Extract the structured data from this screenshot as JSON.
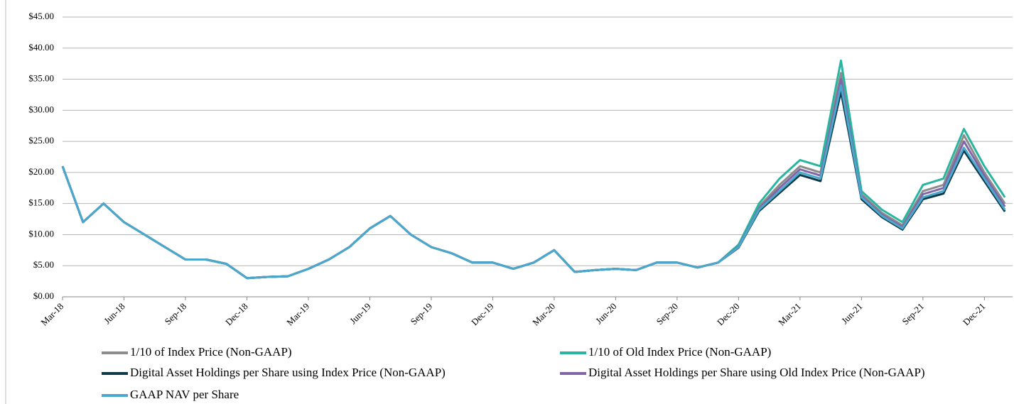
{
  "chart_data": {
    "type": "line",
    "categories": [
      "Mar-18",
      null,
      null,
      "Jun-18",
      null,
      null,
      "Sep-18",
      null,
      null,
      "Dec-18",
      null,
      null,
      "Mar-19",
      null,
      null,
      "Jun-19",
      null,
      null,
      "Sep-19",
      null,
      null,
      "Dec-19",
      null,
      null,
      "Mar-20",
      null,
      null,
      "Jun-20",
      null,
      null,
      "Sep-20",
      null,
      null,
      "Dec-20",
      null,
      null,
      "Mar-21",
      null,
      null,
      "Jun-21",
      null,
      null,
      "Sep-21",
      null,
      null,
      "Dec-21",
      null
    ],
    "series": [
      {
        "name": "1/10 of Index Price (Non-GAAP)",
        "color": "#8c8c8c",
        "values": [
          21,
          12,
          15,
          12,
          10,
          8,
          6,
          6,
          5.3,
          3,
          3.2,
          3.3,
          4.5,
          6,
          8,
          11,
          13,
          10,
          8,
          7,
          5.5,
          5.5,
          4.5,
          5.5,
          7.5,
          4,
          4.3,
          4.5,
          4.3,
          5.5,
          5.5,
          4.7,
          5.5,
          8.2,
          14.5,
          18,
          21,
          20,
          36,
          16.5,
          13.5,
          11.5,
          17,
          18,
          26,
          20,
          15
        ]
      },
      {
        "name": "1/10 of Old Index Price (Non-GAAP)",
        "color": "#2ab5a0",
        "values": [
          21,
          12,
          15,
          12,
          10,
          8,
          6,
          6,
          5.3,
          3,
          3.2,
          3.3,
          4.5,
          6,
          8,
          11,
          13,
          10,
          8,
          7,
          5.5,
          5.5,
          4.5,
          5.5,
          7.5,
          4,
          4.3,
          4.5,
          4.3,
          5.5,
          5.5,
          4.7,
          5.5,
          8.4,
          15,
          19,
          22,
          21,
          38,
          17,
          14,
          12,
          18,
          19,
          27,
          21,
          16
        ]
      },
      {
        "name": "Digital Asset Holdings per Share using Index Price (Non-GAAP)",
        "color": "#0d3a4a",
        "values": [
          21,
          12,
          15,
          12,
          10,
          8,
          6,
          6,
          5.3,
          3,
          3.2,
          3.3,
          4.5,
          6,
          8,
          11,
          13,
          10,
          8,
          7,
          5.5,
          5.5,
          4.5,
          5.5,
          7.5,
          4,
          4.3,
          4.5,
          4.3,
          5.5,
          5.5,
          4.7,
          5.5,
          7.9,
          13.8,
          16.7,
          19.6,
          18.6,
          33,
          15.7,
          12.8,
          10.8,
          15.7,
          16.6,
          23.5,
          18.6,
          13.7
        ]
      },
      {
        "name": "Digital Asset Holdings per Share using Old Index Price (Non-GAAP)",
        "color": "#8066a8",
        "values": [
          21,
          12,
          15,
          12,
          10,
          8,
          6,
          6,
          5.3,
          3,
          3.2,
          3.3,
          4.5,
          6,
          8,
          11,
          13,
          10,
          8,
          7,
          5.5,
          5.5,
          4.5,
          5.5,
          7.5,
          4,
          4.3,
          4.5,
          4.3,
          5.5,
          5.5,
          4.7,
          5.5,
          8.1,
          14.2,
          17.5,
          20.5,
          19.5,
          35,
          16.2,
          13.2,
          11.2,
          16.5,
          17.5,
          25,
          19.5,
          14.5
        ]
      },
      {
        "name": "GAAP NAV per Share",
        "color": "#4aa8cc",
        "values": [
          21,
          12,
          15,
          12,
          10,
          8,
          6,
          6,
          5.3,
          3,
          3.2,
          3.3,
          4.5,
          6,
          8,
          11,
          13,
          10,
          8,
          7,
          5.5,
          5.5,
          4.5,
          5.5,
          7.5,
          4,
          4.3,
          4.5,
          4.3,
          5.5,
          5.5,
          4.7,
          5.5,
          8,
          14,
          17,
          20,
          19,
          34,
          16,
          13,
          11,
          16,
          17,
          24,
          19,
          14
        ]
      }
    ],
    "ylim": [
      0,
      45
    ],
    "yticks": [
      {
        "value": 0,
        "label": "$0.00"
      },
      {
        "value": 5,
        "label": "$5.00"
      },
      {
        "value": 10,
        "label": "$10.00"
      },
      {
        "value": 15,
        "label": "$15.00"
      },
      {
        "value": 20,
        "label": "$20.00"
      },
      {
        "value": 25,
        "label": "$25.00"
      },
      {
        "value": 30,
        "label": "$30.00"
      },
      {
        "value": 35,
        "label": "$35.00"
      },
      {
        "value": 40,
        "label": "$40.00"
      },
      {
        "value": 45,
        "label": "$45.00"
      }
    ],
    "grid": true
  }
}
